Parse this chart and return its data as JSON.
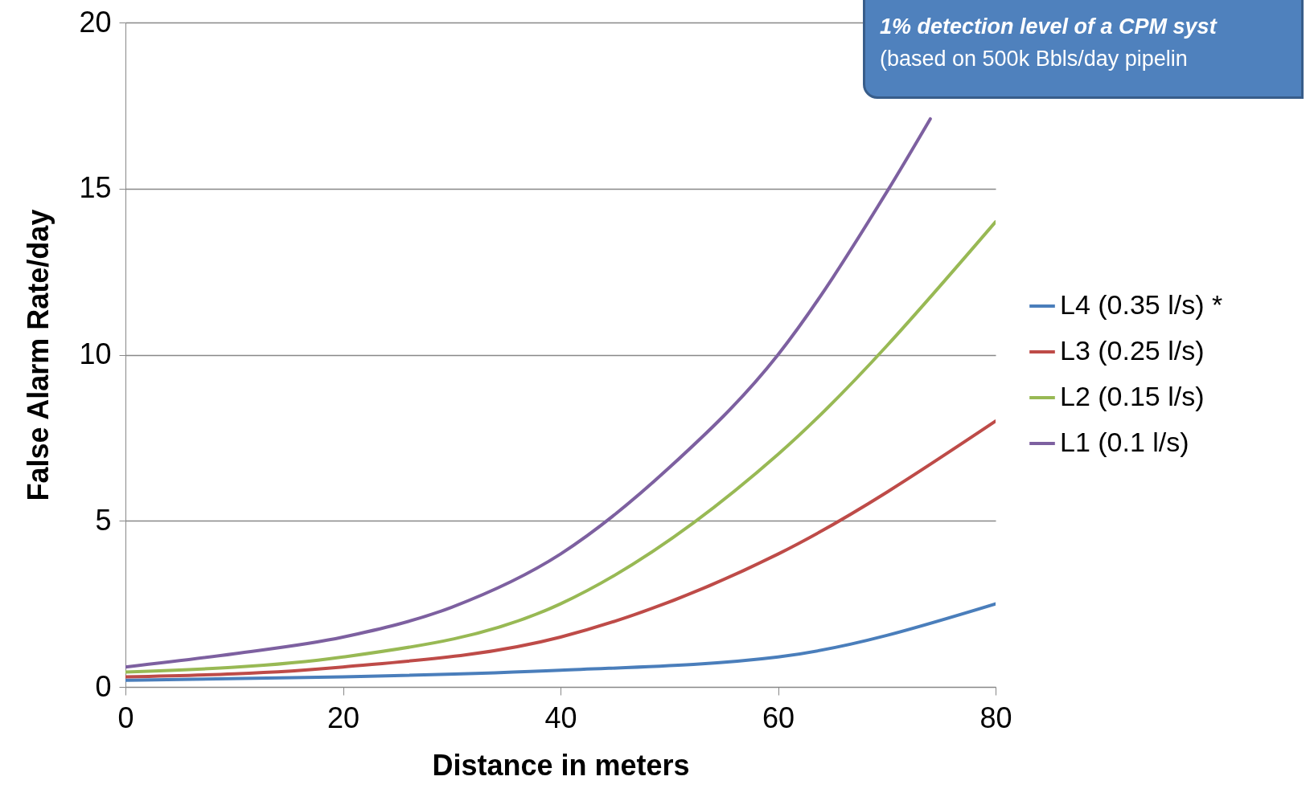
{
  "chart_data": {
    "type": "line",
    "xlabel": "Distance in meters",
    "ylabel": "False Alarm Rate/day",
    "annotations": [
      "1% detection level of a CPM syst",
      "(based on 500k Bbls/day pipelin"
    ],
    "x": [
      0,
      20,
      40,
      60,
      80
    ],
    "series": [
      {
        "name": "L4 (0.35 l/s) *",
        "color": "#4a7ebb",
        "values": [
          0.2,
          0.3,
          0.5,
          0.9,
          2.5
        ]
      },
      {
        "name": "L3 (0.25 l/s)",
        "color": "#be4b48",
        "values": [
          0.3,
          0.6,
          1.5,
          4,
          8
        ]
      },
      {
        "name": "L2 (0.15 l/s)",
        "color": "#98b954",
        "values": [
          0.45,
          0.9,
          2.5,
          7,
          14
        ]
      },
      {
        "name": "L1 (0.1 l/s)",
        "color": "#7d60a0",
        "x": [
          0,
          10,
          20,
          30,
          40,
          50,
          60,
          70,
          74
        ],
        "values": [
          0.6,
          1.0,
          1.5,
          2.4,
          4,
          6.6,
          10,
          14.9,
          17.1
        ]
      }
    ],
    "xlim": [
      0,
      80
    ],
    "ylim": [
      0,
      20
    ],
    "xticks": [
      0,
      20,
      40,
      60,
      80
    ],
    "yticks": [
      0,
      5,
      10,
      15,
      20
    ],
    "grid": "y",
    "legend": "right"
  }
}
